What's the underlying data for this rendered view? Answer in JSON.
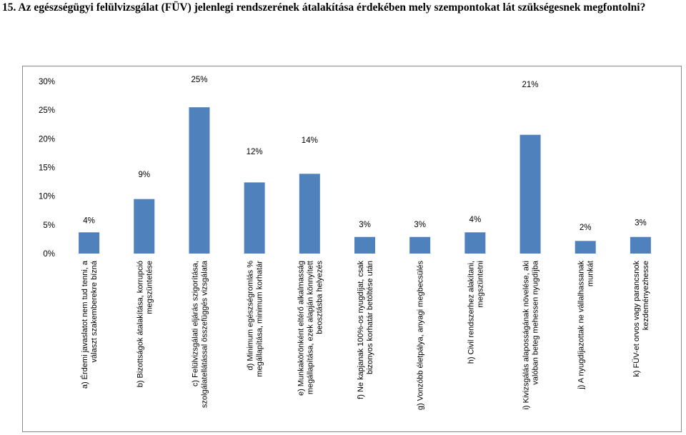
{
  "title": "15. Az egészségügyi felülvizsgálat (FÜV) jelenlegi rendszerének átalakítása érdekében mely szempontokat lát szükségesnek megfontolni?",
  "chart_data": {
    "type": "bar",
    "series_color": "#4F81BD",
    "ylim": [
      0,
      30
    ],
    "yticks": [
      "0%",
      "5%",
      "10%",
      "15%",
      "20%",
      "25%",
      "30%"
    ],
    "grid": false,
    "legend": "none",
    "categories": [
      [
        "a) Érdemi javaslatot nem tud tenni, a",
        "választ szakemberekre bízná"
      ],
      [
        "b) Bizottságok átalakítása, korrupció",
        "megszüntetése"
      ],
      [
        "c) Felülvizsgálati eljárás szigorítása,",
        "szolgálatellátással összefüggés vizsgálata"
      ],
      [
        "d) Minimum egészségromlás %",
        "megállapítása, minimum korhatár"
      ],
      [
        "e) Munkakörönként eltérő alkalmasság",
        "megállapítása, ezek alapján könnyített",
        "beosztásba helyezés"
      ],
      [
        "f) Ne kapjanak 100%-os nyugdíjat, csak",
        "bizonyos korhatár betöltése után"
      ],
      [
        "g) Vonzóbb életpálya, anyagi megbecsülés"
      ],
      [
        "h) Civil rendszerhez alakítani,",
        "megszüntetni"
      ],
      [
        "i) Kivizsgálás alaposságának növelése, aki",
        "valóban beteg mehessen nyugdíjba"
      ],
      [
        "j) A nyugdíjazottak ne vállalhassanak",
        "munkát"
      ],
      [
        "k) FÜV-et orvos vagy parancsnok",
        "kezdeményezhesse"
      ]
    ],
    "values": [
      3.7,
      9.5,
      25.5,
      12.4,
      13.9,
      2.9,
      2.9,
      3.7,
      20.7,
      2.2,
      2.9
    ],
    "data_labels": [
      "4%",
      "9%",
      "25%",
      "12%",
      "14%",
      "3%",
      "3%",
      "4%",
      "21%",
      "2%",
      "3%"
    ]
  }
}
